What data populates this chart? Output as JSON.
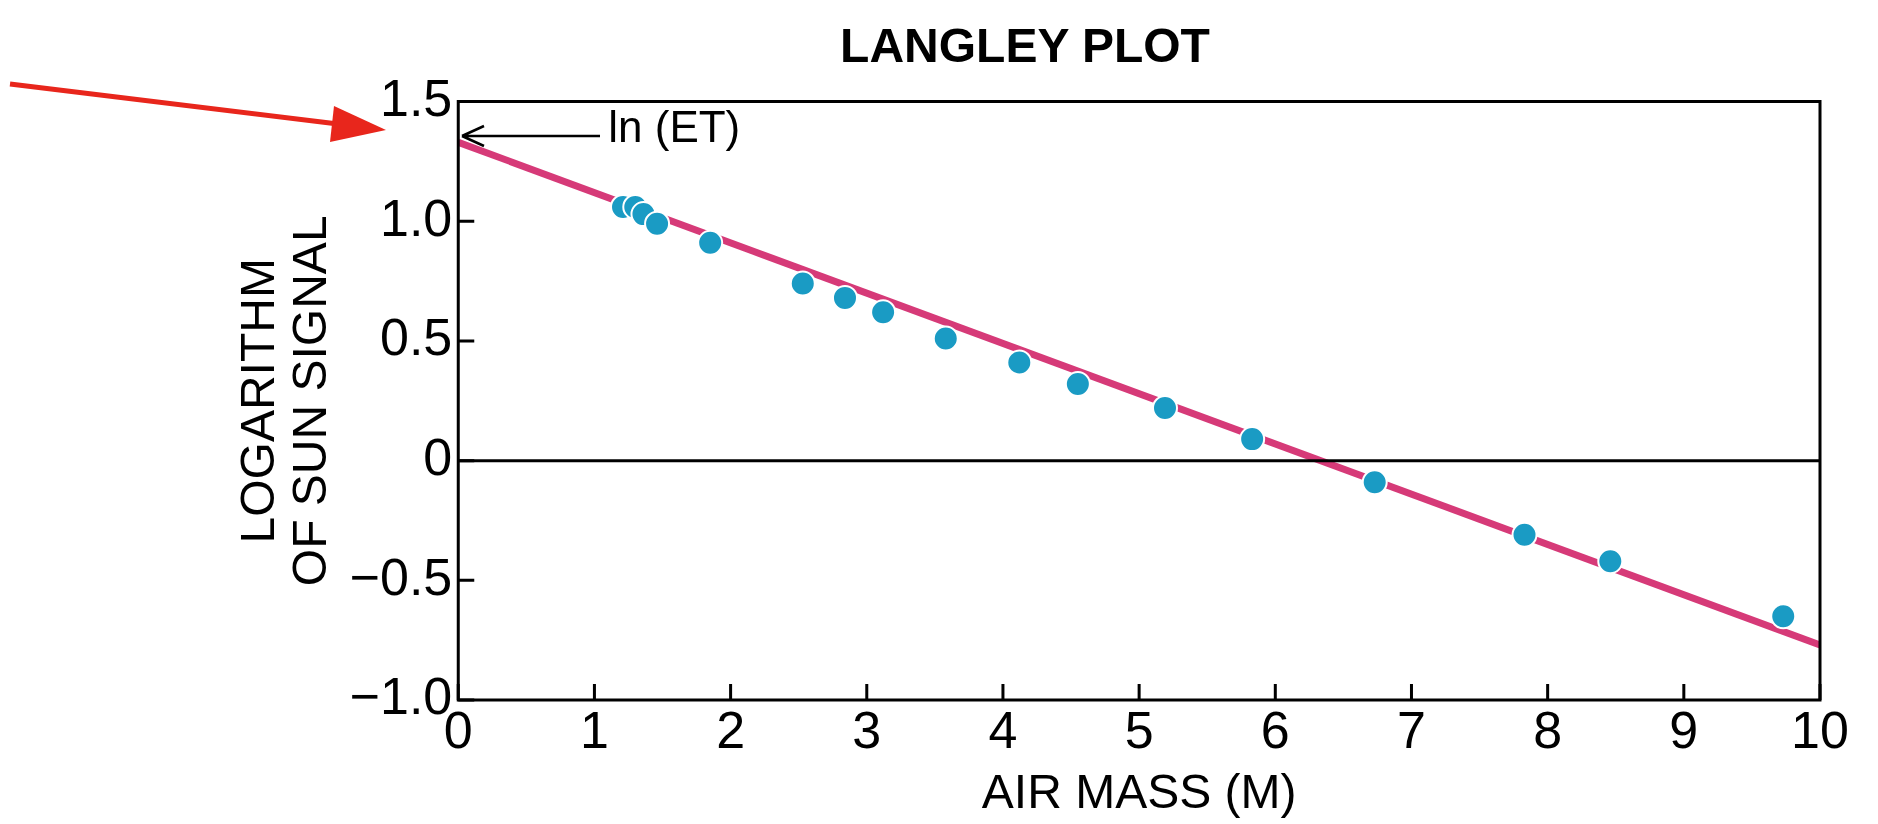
{
  "chart_data": {
    "type": "scatter",
    "title": "LANGLEY PLOT",
    "xlabel": "AIR MASS (M)",
    "ylabel": "LOGARITHM\nOF SUN SIGNAL",
    "xlim": [
      0,
      10
    ],
    "xticks": [
      0,
      1,
      2,
      3,
      4,
      5,
      6,
      7,
      8,
      9,
      10
    ],
    "ylim": [
      -1.0,
      1.5
    ],
    "yticks": [
      {
        "value": -1,
        "label": "−1.0"
      },
      {
        "value": -0.5,
        "label": "−0.5"
      },
      0,
      {
        "value": 0.5,
        "label": "0.5"
      },
      {
        "value": 1,
        "label": "1.0"
      },
      1.5
    ],
    "grid": false,
    "legend": false,
    "series": [
      {
        "type": "line",
        "marker": "none",
        "color": "#d63a78",
        "x": [
          0,
          10
        ],
        "values": [
          1.33,
          -0.77
        ]
      },
      {
        "marker": "circle",
        "color": "#1a9bc4",
        "x": [
          1.21,
          1.3,
          1.36,
          1.46,
          1.85,
          2.53,
          2.84,
          3.12,
          3.58,
          4.12,
          4.55,
          5.19,
          5.83,
          6.73,
          7.83,
          8.46,
          9.73
        ],
        "values": [
          1.06,
          1.06,
          1.03,
          0.99,
          0.91,
          0.74,
          0.68,
          0.62,
          0.51,
          0.41,
          0.32,
          0.22,
          0.09,
          -0.09,
          -0.31,
          -0.42,
          -0.65
        ]
      }
    ],
    "ref_lines": [
      {
        "axis": "y",
        "value": 0,
        "color": "#000000"
      }
    ],
    "annotations": [
      {
        "text": "ln (ET)",
        "x": 0,
        "y": 1.33
      }
    ]
  }
}
